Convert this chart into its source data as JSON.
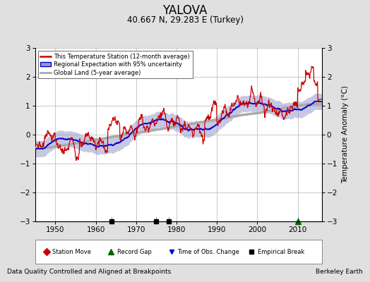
{
  "title": "YALOVA",
  "subtitle": "40.667 N, 29.283 E (Turkey)",
  "xlabel_bottom": "Data Quality Controlled and Aligned at Breakpoints",
  "xlabel_right": "Berkeley Earth",
  "ylabel": "Temperature Anomaly (°C)",
  "ylim": [
    -3,
    3
  ],
  "xlim": [
    1945,
    2016
  ],
  "xticks": [
    1950,
    1960,
    1970,
    1980,
    1990,
    2000,
    2010
  ],
  "yticks": [
    -3,
    -2,
    -1,
    0,
    1,
    2,
    3
  ],
  "bg_color": "#e0e0e0",
  "plot_bg_color": "#ffffff",
  "grid_color": "#bbbbbb",
  "station_line_color": "#cc0000",
  "regional_line_color": "#0000cc",
  "regional_fill_color": "#9999cc",
  "global_land_color": "#aaaaaa",
  "legend_station": "This Temperature Station (12-month average)",
  "legend_regional": "Regional Expectation with 95% uncertainty",
  "legend_global": "Global Land (5-year average)",
  "marker_events": {
    "empirical_breaks": [
      1964,
      1975,
      1978
    ],
    "record_gaps": [
      2010
    ],
    "station_moves": [],
    "obs_changes": []
  },
  "seed": 42
}
